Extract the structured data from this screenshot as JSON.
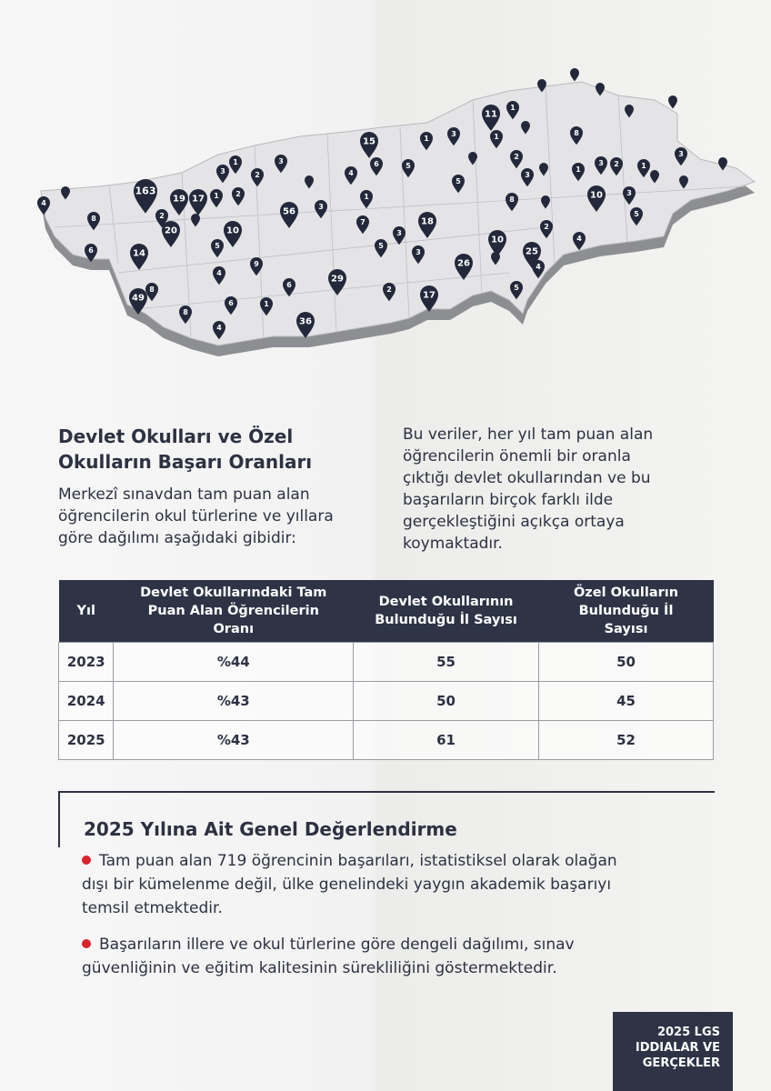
{
  "map": {
    "pins": [
      "4",
      "8",
      "6",
      "163",
      "19",
      "17",
      "2",
      "1",
      "2",
      "3",
      "1",
      "2",
      "3",
      "20",
      "10",
      "5",
      "4",
      "9",
      "6",
      "1",
      "8",
      "4",
      "49",
      "8",
      "14",
      "56",
      "3",
      "15",
      "6",
      "4",
      "5",
      "1",
      "3",
      "5",
      "1",
      "7",
      "3",
      "5",
      "3",
      "18",
      "29",
      "6",
      "36",
      "2",
      "17",
      "26",
      "10",
      "8",
      "11",
      "1",
      "1",
      "2",
      "3",
      "8",
      "1",
      "3",
      "2",
      "1",
      "10",
      "3",
      "5",
      "2",
      "4",
      "25",
      "4",
      "5",
      "3"
    ]
  },
  "section1": {
    "title": "Devlet Okulları ve Özel Okulların Başarı Oranları",
    "text": "Merkezî sınavdan tam puan alan öğrencilerin okul türlerine ve yıllara göre dağılımı aşağıdaki gibidir:"
  },
  "section2": {
    "text": "Bu veriler, her yıl tam puan alan öğrencilerin önemli bir oranla çıktığı devlet okullarından ve bu başarıların birçok farklı ilde gerçekleştiğini açıkça ortaya koymaktadır."
  },
  "table": {
    "headers": [
      "Yıl",
      "Devlet Okullarındaki Tam Puan Alan Öğrencilerin Oranı",
      "Devlet Okullarının Bulunduğu İl Sayısı",
      "Özel Okulların Bulunduğu İl Sayısı"
    ],
    "rows": [
      [
        "2023",
        "%44",
        "55",
        "50"
      ],
      [
        "2024",
        "%43",
        "50",
        "45"
      ],
      [
        "2025",
        "%43",
        "61",
        "52"
      ]
    ]
  },
  "evaluation": {
    "title": "2025 Yılına Ait Genel Değerlendirme",
    "bullets": [
      "Tam puan alan 719 öğrencinin başarıları, istatistiksel olarak olağan dışı bir kümelenme değil, ülke genelindeki yaygın akademik başarıyı temsil etmektedir.",
      "Başarıların illere ve okul türlerine göre dengeli dağılımı, sınav güvenliğinin ve eğitim kalitesinin sürekliliğini göstermektedir."
    ]
  },
  "badge": "2025 LGS IDDIALAR VE GERÇEKLER"
}
